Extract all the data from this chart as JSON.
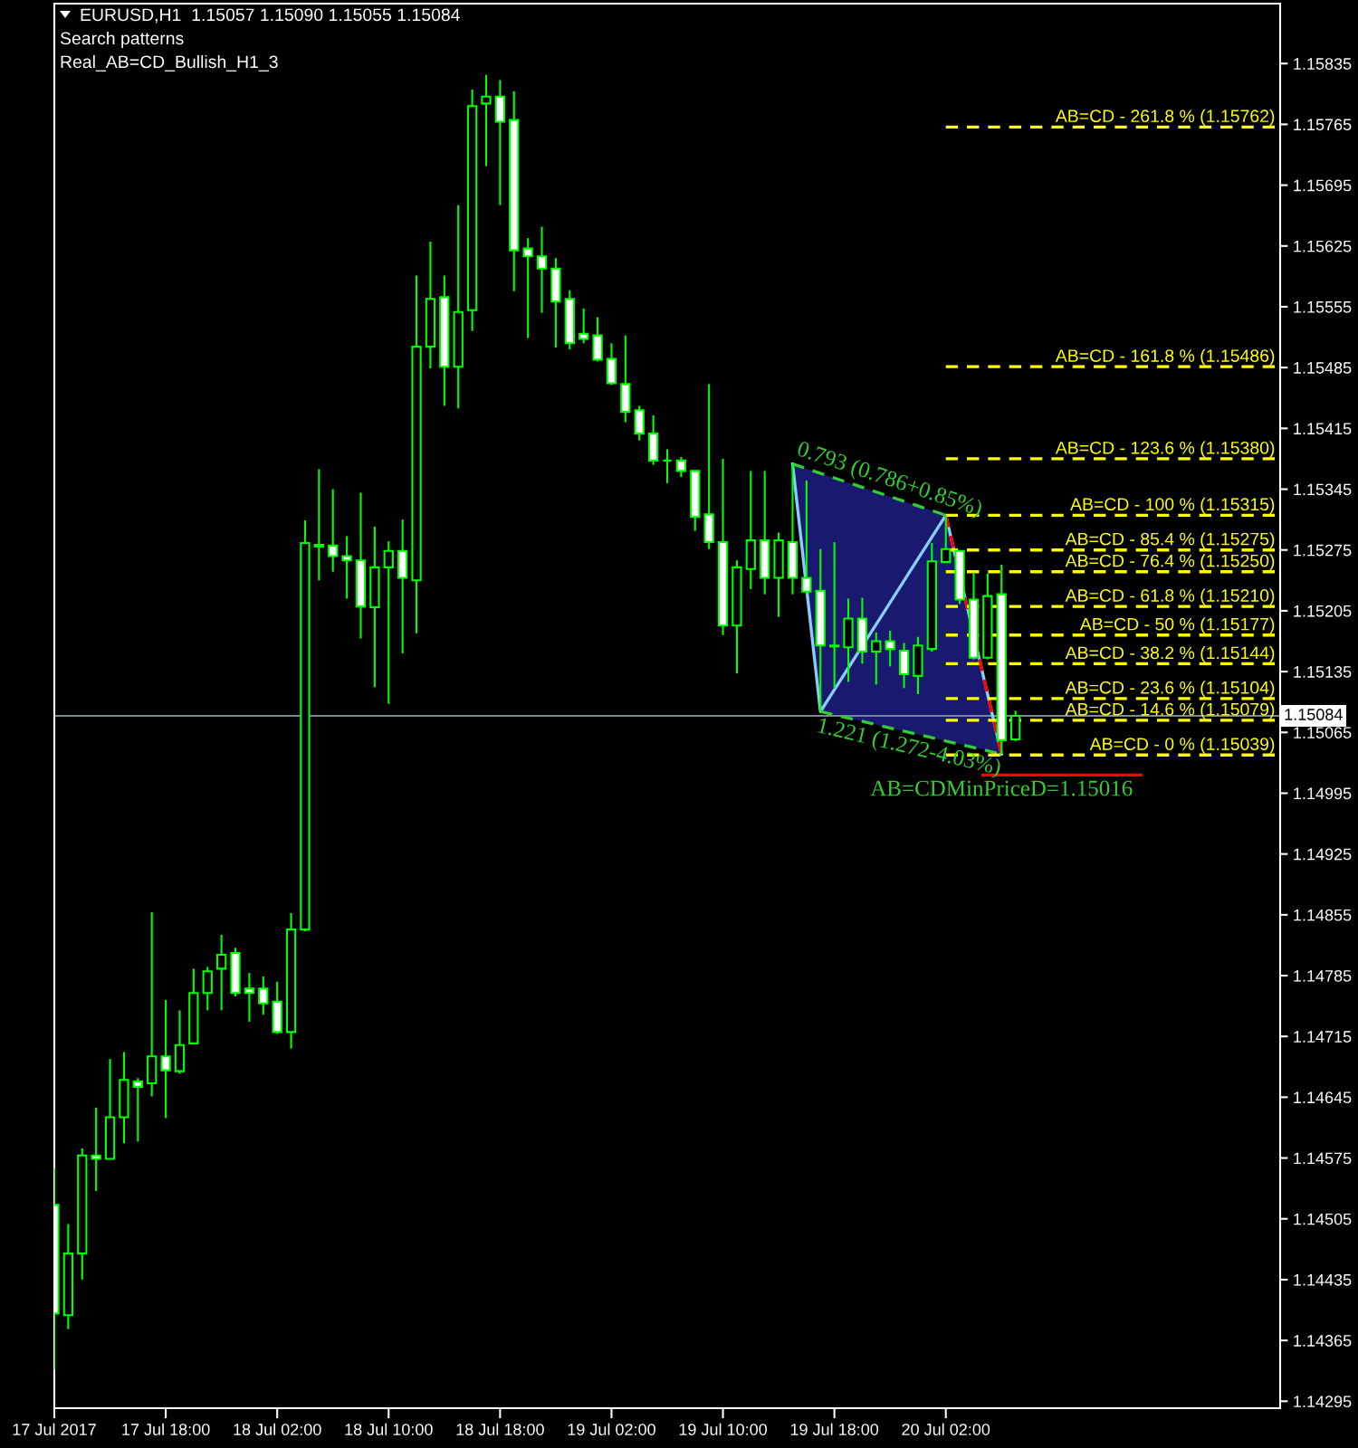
{
  "chart_data": {
    "type": "candlestick",
    "title": "EURUSD,H1  1.15057 1.15090 1.15055 1.15084",
    "subtitle": "Search patterns",
    "annotations": [
      "Real_AB=CD_Bullish_H1_3",
      {
        "text": "AB=CDMinPriceD=1.15016",
        "x": "2017-07-20T06:00",
        "y": 1.15016
      }
    ],
    "x": [
      "2017-07-17T10:00",
      "2017-07-17T11:00",
      "2017-07-17T12:00",
      "2017-07-17T13:00",
      "2017-07-17T14:00",
      "2017-07-17T15:00",
      "2017-07-17T16:00",
      "2017-07-17T17:00",
      "2017-07-17T18:00",
      "2017-07-17T19:00",
      "2017-07-17T20:00",
      "2017-07-17T21:00",
      "2017-07-17T22:00",
      "2017-07-17T23:00",
      "2017-07-18T00:00",
      "2017-07-18T01:00",
      "2017-07-18T02:00",
      "2017-07-18T03:00",
      "2017-07-18T04:00",
      "2017-07-18T05:00",
      "2017-07-18T06:00",
      "2017-07-18T07:00",
      "2017-07-18T08:00",
      "2017-07-18T09:00",
      "2017-07-18T10:00",
      "2017-07-18T11:00",
      "2017-07-18T12:00",
      "2017-07-18T13:00",
      "2017-07-18T14:00",
      "2017-07-18T15:00",
      "2017-07-18T16:00",
      "2017-07-18T17:00",
      "2017-07-18T18:00",
      "2017-07-18T19:00",
      "2017-07-18T20:00",
      "2017-07-18T21:00",
      "2017-07-18T22:00",
      "2017-07-18T23:00",
      "2017-07-19T00:00",
      "2017-07-19T01:00",
      "2017-07-19T02:00",
      "2017-07-19T03:00",
      "2017-07-19T04:00",
      "2017-07-19T05:00",
      "2017-07-19T06:00",
      "2017-07-19T07:00",
      "2017-07-19T08:00",
      "2017-07-19T09:00",
      "2017-07-19T10:00",
      "2017-07-19T11:00",
      "2017-07-19T12:00",
      "2017-07-19T13:00",
      "2017-07-19T14:00",
      "2017-07-19T15:00",
      "2017-07-19T16:00",
      "2017-07-19T17:00",
      "2017-07-19T18:00",
      "2017-07-19T19:00",
      "2017-07-19T20:00",
      "2017-07-19T21:00",
      "2017-07-19T22:00",
      "2017-07-19T23:00",
      "2017-07-20T00:00",
      "2017-07-20T01:00",
      "2017-07-20T02:00",
      "2017-07-20T03:00",
      "2017-07-20T04:00",
      "2017-07-20T05:00",
      "2017-07-20T06:00",
      "2017-07-20T07:00"
    ],
    "ohlc": [
      [
        1.14521,
        1.14564,
        1.14331,
        1.14396
      ],
      [
        1.14394,
        1.14499,
        1.14378,
        1.14465
      ],
      [
        1.14465,
        1.14586,
        1.14435,
        1.14578
      ],
      [
        1.14578,
        1.14633,
        1.14537,
        1.14574
      ],
      [
        1.14574,
        1.14689,
        1.14574,
        1.14622
      ],
      [
        1.14622,
        1.14697,
        1.14592,
        1.14665
      ],
      [
        1.14663,
        1.14667,
        1.14594,
        1.14657
      ],
      [
        1.14661,
        1.14858,
        1.14646,
        1.14692
      ],
      [
        1.14692,
        1.14757,
        1.14621,
        1.14676
      ],
      [
        1.14675,
        1.14745,
        1.14672,
        1.14705
      ],
      [
        1.14707,
        1.14793,
        1.14707,
        1.14765
      ],
      [
        1.14765,
        1.14795,
        1.14745,
        1.1479
      ],
      [
        1.14793,
        1.14832,
        1.14745,
        1.14809
      ],
      [
        1.14811,
        1.14817,
        1.14761,
        1.14765
      ],
      [
        1.1477,
        1.14788,
        1.14732,
        1.14765
      ],
      [
        1.1477,
        1.14784,
        1.1474,
        1.14753
      ],
      [
        1.14755,
        1.14778,
        1.14718,
        1.1472
      ],
      [
        1.1472,
        1.14857,
        1.14701,
        1.14838
      ],
      [
        1.14838,
        1.15309,
        1.14836,
        1.15283
      ],
      [
        1.15279,
        1.15368,
        1.1524,
        1.15281
      ],
      [
        1.1528,
        1.15345,
        1.1525,
        1.15268
      ],
      [
        1.15268,
        1.15291,
        1.15219,
        1.15263
      ],
      [
        1.15263,
        1.15341,
        1.15173,
        1.1521
      ],
      [
        1.15209,
        1.15302,
        1.15117,
        1.15255
      ],
      [
        1.15255,
        1.15285,
        1.15098,
        1.15274
      ],
      [
        1.15274,
        1.1531,
        1.15156,
        1.15243
      ],
      [
        1.1524,
        1.15591,
        1.15179,
        1.15509
      ],
      [
        1.15509,
        1.1563,
        1.15484,
        1.15564
      ],
      [
        1.15566,
        1.15591,
        1.15441,
        1.15486
      ],
      [
        1.15486,
        1.15672,
        1.15438,
        1.15549
      ],
      [
        1.15551,
        1.15805,
        1.15527,
        1.15786
      ],
      [
        1.15789,
        1.15822,
        1.15717,
        1.15797
      ],
      [
        1.15797,
        1.15816,
        1.15672,
        1.15768
      ],
      [
        1.1577,
        1.15803,
        1.15573,
        1.1562
      ],
      [
        1.15622,
        1.15634,
        1.15519,
        1.15613
      ],
      [
        1.15613,
        1.15647,
        1.15548,
        1.15599
      ],
      [
        1.15599,
        1.15611,
        1.15508,
        1.15561
      ],
      [
        1.15564,
        1.15574,
        1.15506,
        1.15513
      ],
      [
        1.15524,
        1.15553,
        1.15513,
        1.15518
      ],
      [
        1.15522,
        1.15543,
        1.15492,
        1.15494
      ],
      [
        1.15495,
        1.15513,
        1.15465,
        1.15467
      ],
      [
        1.15466,
        1.15522,
        1.15422,
        1.15434
      ],
      [
        1.15436,
        1.15441,
        1.15401,
        1.15409
      ],
      [
        1.15409,
        1.1543,
        1.15373,
        1.15378
      ],
      [
        1.15378,
        1.15391,
        1.15352,
        1.15378
      ],
      [
        1.15378,
        1.15382,
        1.15359,
        1.15366
      ],
      [
        1.15366,
        1.15366,
        1.15297,
        1.15313
      ],
      [
        1.15316,
        1.15466,
        1.15276,
        1.15284
      ],
      [
        1.15284,
        1.1538,
        1.15177,
        1.15188
      ],
      [
        1.15188,
        1.15263,
        1.15133,
        1.15255
      ],
      [
        1.15253,
        1.15366,
        1.1523,
        1.15286
      ],
      [
        1.15286,
        1.15366,
        1.15224,
        1.15243
      ],
      [
        1.15243,
        1.15295,
        1.15198,
        1.15286
      ],
      [
        1.15284,
        1.15374,
        1.15224,
        1.15243
      ],
      [
        1.15243,
        1.15355,
        1.15224,
        1.15227
      ],
      [
        1.15228,
        1.15276,
        1.15089,
        1.15165
      ],
      [
        1.15165,
        1.15284,
        1.15116,
        1.15164
      ],
      [
        1.15163,
        1.15219,
        1.15123,
        1.15196
      ],
      [
        1.15196,
        1.1522,
        1.15144,
        1.15158
      ],
      [
        1.15158,
        1.1518,
        1.1512,
        1.1517
      ],
      [
        1.1517,
        1.15182,
        1.15141,
        1.15161
      ],
      [
        1.15159,
        1.15168,
        1.15116,
        1.15132
      ],
      [
        1.1513,
        1.15175,
        1.15109,
        1.15165
      ],
      [
        1.15161,
        1.15283,
        1.15158,
        1.15262
      ],
      [
        1.15261,
        1.15315,
        1.15261,
        1.15276
      ],
      [
        1.15274,
        1.15274,
        1.15213,
        1.15218
      ],
      [
        1.15218,
        1.15248,
        1.15149,
        1.15151
      ],
      [
        1.15151,
        1.15248,
        1.15149,
        1.15222
      ],
      [
        1.15224,
        1.15258,
        1.1504,
        1.15056
      ],
      [
        1.15057,
        1.1509,
        1.15055,
        1.15084
      ]
    ],
    "color": "#00ff00",
    "colors": [
      "#ffffff",
      "#000000",
      "#000000",
      "#ffffff",
      "#000000",
      "#000000",
      "#ffffff",
      "#000000",
      "#ffffff",
      "#000000",
      "#000000",
      "#000000",
      "#000000",
      "#ffffff",
      "#ffffff",
      "#ffffff",
      "#ffffff",
      "#000000",
      "#000000",
      "#000000",
      "#ffffff",
      "#ffffff",
      "#ffffff",
      "#000000",
      "#000000",
      "#ffffff",
      "#000000",
      "#000000",
      "#ffffff",
      "#000000",
      "#000000",
      "#000000",
      "#ffffff",
      "#ffffff",
      "#ffffff",
      "#ffffff",
      "#ffffff",
      "#ffffff",
      "#ffffff",
      "#ffffff",
      "#ffffff",
      "#ffffff",
      "#ffffff",
      "#ffffff",
      "#00ff00",
      "#ffffff",
      "#ffffff",
      "#ffffff",
      "#ffffff",
      "#000000",
      "#000000",
      "#ffffff",
      "#000000",
      "#ffffff",
      "#ffffff",
      "#ffffff",
      "#ffffff",
      "#000000",
      "#ffffff",
      "#000000",
      "#ffffff",
      "#ffffff",
      "#000000",
      "#000000",
      "#000000",
      "#ffffff",
      "#ffffff",
      "#000000",
      "#ffffff",
      "#000000"
    ],
    "series": [
      {
        "type": "line",
        "color": "#87cefa",
        "line_style": "solid",
        "x": [
          "2017-07-19T15:00",
          "2017-07-19T16:30",
          "2017-07-19T17:00",
          "2017-07-19T21:30",
          "2017-07-20T02:00",
          "2017-07-20T04:30",
          "2017-07-20T06:00"
        ],
        "values": [
          1.15374,
          1.1516,
          1.15089,
          1.15202,
          1.15315,
          1.15143,
          1.1504
        ],
        "lower": [
          1.15374,
          1.1516,
          1.15089,
          1.15072,
          1.15055,
          1.15046,
          1.1504
        ],
        "upper": [
          1.15374,
          1.15366,
          1.15363,
          1.15339,
          1.15315,
          1.15143,
          1.1504
        ]
      },
      {
        "type": "line",
        "color": "#ff0000",
        "line_style": "dashed",
        "x": [
          "2017-07-20T02:00",
          "2017-07-20T06:00"
        ],
        "values": [
          1.15315,
          1.1504
        ]
      },
      {
        "name": "0.793 (0.786+0.85%)",
        "type": "line",
        "color": "#32cd32",
        "line_style": "dashed",
        "x": [
          "2017-07-19T15:00",
          "2017-07-20T02:00"
        ],
        "values": [
          1.15374,
          1.15315
        ]
      },
      {
        "name": "1.221 (1.272-4.03%)",
        "type": "line",
        "color": "#32cd32",
        "line_style": "dashed",
        "x": [
          "2017-07-19T17:00",
          "2017-07-20T06:00"
        ],
        "values": [
          1.15089,
          1.1504
        ]
      },
      {
        "type": "line",
        "color": "#ff0000",
        "line_style": "solid",
        "x": [
          "2017-07-20T04:40",
          "2017-07-20T16:00"
        ],
        "values": [
          1.15016,
          1.15016
        ]
      },
      {
        "name": "AB=CD - 261.8 % (1.15762)",
        "type": "line",
        "color": "#ffff00",
        "line_style": "dashed",
        "x": [
          "2017-07-20T02:00",
          "2017-07-21T02:00"
        ],
        "values": [
          1.15762,
          1.15762
        ]
      },
      {
        "name": "AB=CD - 161.8 % (1.15486)",
        "type": "line",
        "color": "#ffff00",
        "line_style": "dashed",
        "x": [
          "2017-07-20T02:00",
          "2017-07-21T02:00"
        ],
        "values": [
          1.15486,
          1.15486
        ]
      },
      {
        "name": "AB=CD - 123.6 % (1.15380)",
        "type": "line",
        "color": "#ffff00",
        "line_style": "dashed",
        "x": [
          "2017-07-20T02:00",
          "2017-07-21T02:00"
        ],
        "values": [
          1.1538,
          1.1538
        ]
      },
      {
        "name": "AB=CD - 100 % (1.15315)",
        "type": "line",
        "color": "#ffff00",
        "line_style": "dashed",
        "x": [
          "2017-07-20T02:00",
          "2017-07-21T02:00"
        ],
        "values": [
          1.15315,
          1.15315
        ]
      },
      {
        "name": "AB=CD - 85.4 % (1.15275)",
        "type": "line",
        "color": "#ffff00",
        "line_style": "dashed",
        "x": [
          "2017-07-20T02:00",
          "2017-07-21T02:00"
        ],
        "values": [
          1.15275,
          1.15275
        ]
      },
      {
        "name": "AB=CD - 76.4 % (1.15250)",
        "type": "line",
        "color": "#ffff00",
        "line_style": "dashed",
        "x": [
          "2017-07-20T02:00",
          "2017-07-21T02:00"
        ],
        "values": [
          1.1525,
          1.1525
        ]
      },
      {
        "name": "AB=CD - 61.8 % (1.15210)",
        "type": "line",
        "color": "#ffff00",
        "line_style": "dashed",
        "x": [
          "2017-07-20T02:00",
          "2017-07-21T02:00"
        ],
        "values": [
          1.1521,
          1.1521
        ]
      },
      {
        "name": "AB=CD - 50 % (1.15177)",
        "type": "line",
        "color": "#ffff00",
        "line_style": "dashed",
        "x": [
          "2017-07-20T02:00",
          "2017-07-21T02:00"
        ],
        "values": [
          1.15177,
          1.15177
        ]
      },
      {
        "name": "AB=CD - 38.2 % (1.15144)",
        "type": "line",
        "color": "#ffff00",
        "line_style": "dashed",
        "x": [
          "2017-07-20T02:00",
          "2017-07-21T02:00"
        ],
        "values": [
          1.15144,
          1.15144
        ]
      },
      {
        "name": "AB=CD - 23.6 % (1.15104)",
        "type": "line",
        "color": "#ffff00",
        "line_style": "dashed",
        "x": [
          "2017-07-20T02:00",
          "2017-07-21T02:00"
        ],
        "values": [
          1.15104,
          1.15104
        ]
      },
      {
        "name": "AB=CD - 14.6 % (1.15079)",
        "type": "line",
        "color": "#ffff00",
        "line_style": "dashed",
        "x": [
          "2017-07-20T02:00",
          "2017-07-21T02:00"
        ],
        "values": [
          1.15079,
          1.15079
        ]
      },
      {
        "name": "AB=CD - 0 % (1.15039)",
        "type": "line",
        "color": "#ffff00",
        "line_style": "dashed",
        "x": [
          "2017-07-20T02:00",
          "2017-07-21T02:00"
        ],
        "values": [
          1.15039,
          1.15039
        ]
      }
    ],
    "ref_lines": [
      {
        "axis": "y",
        "value": 1.15084,
        "label": "1.15084",
        "color": "#778899"
      }
    ],
    "xlim": [
      "2017-07-17T10:00",
      "2017-07-21T02:00"
    ],
    "xticks": [
      {
        "value": "2017-07-17T10:00",
        "label": "17 Jul 2017"
      },
      {
        "value": "2017-07-17T18:00",
        "label": "17 Jul 18:00"
      },
      {
        "value": "2017-07-18T02:00",
        "label": "18 Jul 02:00"
      },
      {
        "value": "2017-07-18T10:00",
        "label": "18 Jul 10:00"
      },
      {
        "value": "2017-07-18T18:00",
        "label": "18 Jul 18:00"
      },
      {
        "value": "2017-07-19T02:00",
        "label": "19 Jul 02:00"
      },
      {
        "value": "2017-07-19T10:00",
        "label": "19 Jul 10:00"
      },
      {
        "value": "2017-07-19T18:00",
        "label": "19 Jul 18:00"
      },
      {
        "value": "2017-07-20T02:00",
        "label": "20 Jul 02:00"
      }
    ],
    "ylim": [
      1.14287,
      1.15904
    ],
    "yticks": [
      1.15835,
      1.15765,
      1.15695,
      1.15625,
      1.15555,
      1.15485,
      1.15415,
      1.15345,
      1.15275,
      1.15205,
      1.15135,
      1.15065,
      1.14995,
      1.14925,
      1.14855,
      1.14785,
      1.14715,
      1.14645,
      1.14575,
      1.14505,
      1.14435,
      1.14365,
      1.14295
    ]
  }
}
